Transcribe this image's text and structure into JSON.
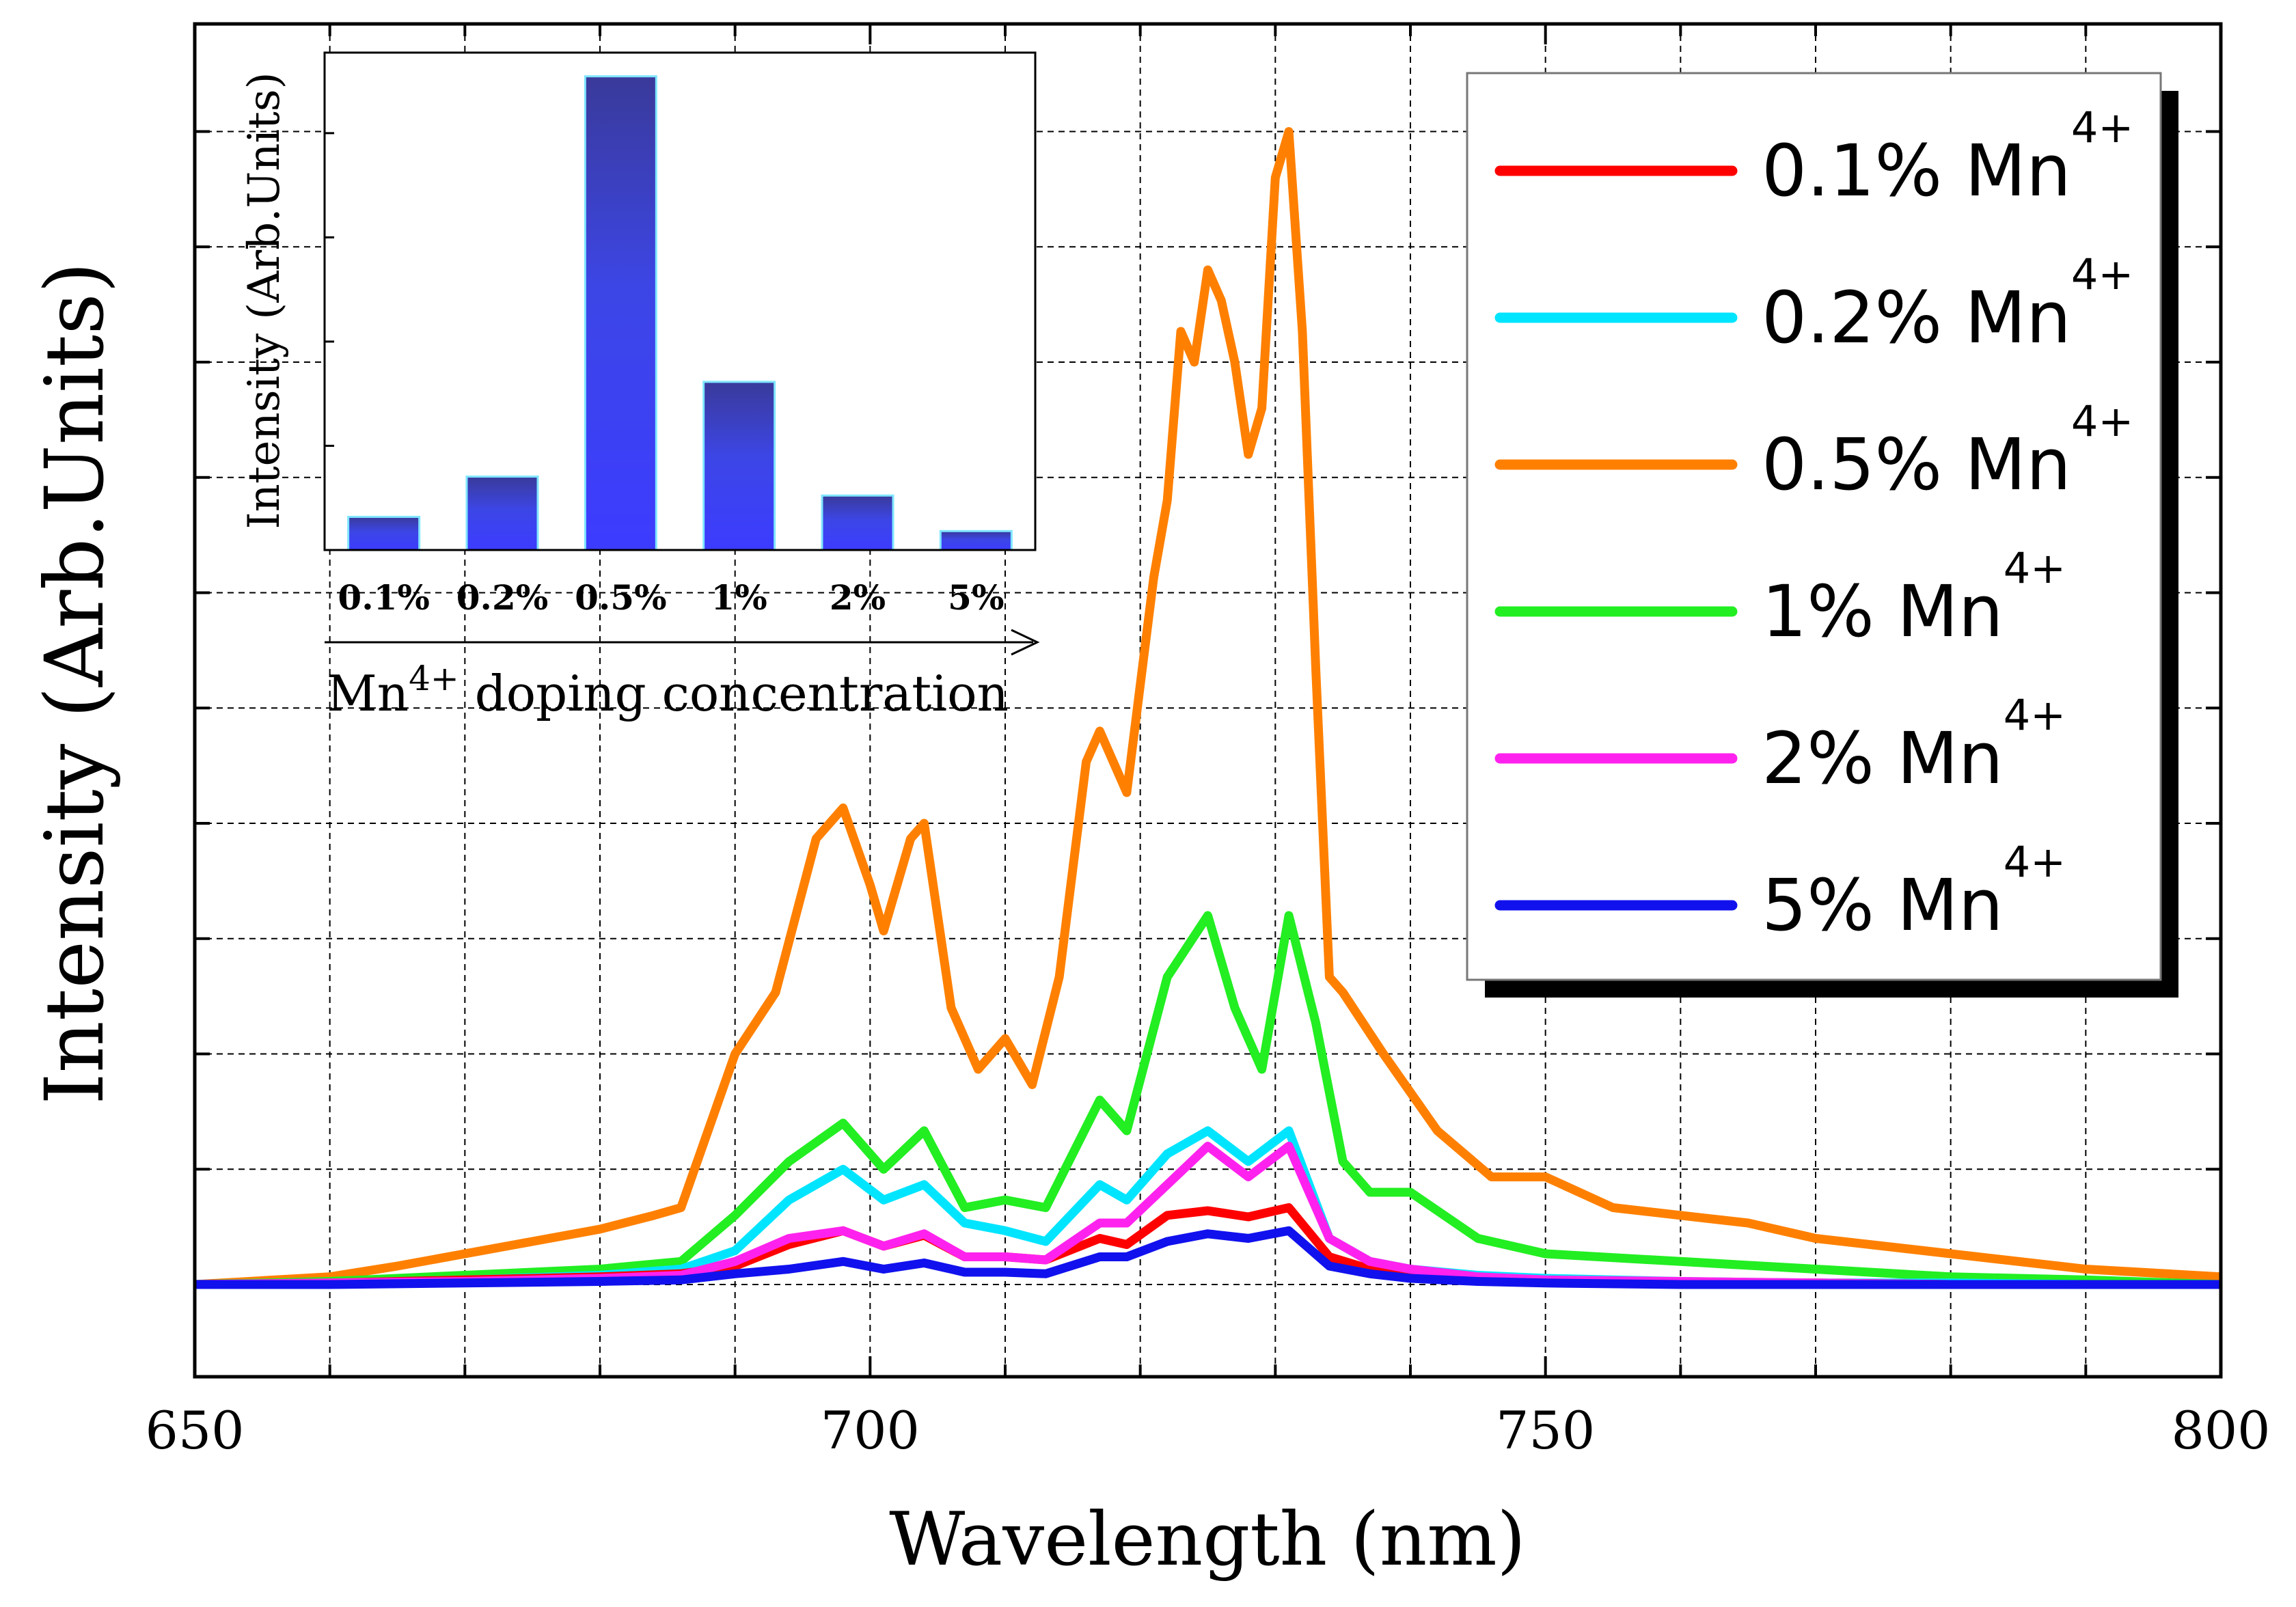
{
  "chart_data": [
    {
      "type": "line",
      "title": "",
      "xlabel": "Wavelength (nm)",
      "ylabel": "Intensity (Arb.Units)",
      "xlim": [
        650,
        800
      ],
      "ylim": [
        -0.06,
        0.82
      ],
      "xticks": [
        650,
        700,
        750,
        800
      ],
      "grid": true,
      "legend_position": "top-right",
      "series": [
        {
          "name": "0.1% Mn",
          "superscript": "4+",
          "color": "#ff0000",
          "x": [
            650,
            660,
            670,
            680,
            686,
            690,
            694,
            698,
            701,
            704,
            707,
            710,
            713,
            717,
            719,
            722,
            725,
            728,
            731,
            734,
            737,
            740,
            745,
            750,
            760,
            770,
            780,
            790,
            800
          ],
          "y": [
            0,
            0.001,
            0.003,
            0.005,
            0.007,
            0.012,
            0.026,
            0.035,
            0.025,
            0.032,
            0.018,
            0.018,
            0.016,
            0.03,
            0.026,
            0.045,
            0.048,
            0.044,
            0.05,
            0.018,
            0.01,
            0.006,
            0.003,
            0.002,
            0.001,
            0.001,
            0,
            0,
            0
          ]
        },
        {
          "name": "0.2% Mn",
          "superscript": "4+",
          "color": "#00e5ff",
          "x": [
            650,
            660,
            670,
            680,
            686,
            690,
            694,
            698,
            701,
            704,
            707,
            710,
            713,
            717,
            719,
            722,
            725,
            728,
            731,
            734,
            737,
            740,
            745,
            750,
            760,
            770,
            780,
            790,
            800
          ],
          "y": [
            0,
            0.001,
            0.003,
            0.006,
            0.01,
            0.022,
            0.055,
            0.075,
            0.055,
            0.065,
            0.04,
            0.035,
            0.028,
            0.065,
            0.055,
            0.085,
            0.1,
            0.08,
            0.1,
            0.03,
            0.015,
            0.01,
            0.006,
            0.004,
            0.002,
            0.001,
            0.001,
            0,
            0
          ]
        },
        {
          "name": "0.5% Mn",
          "superscript": "4+",
          "color": "#ff8000",
          "x": [
            650,
            660,
            665,
            670,
            675,
            680,
            684,
            686,
            690,
            693,
            696,
            698,
            700,
            701,
            703,
            704,
            706,
            708,
            710,
            712,
            714,
            716,
            717,
            719,
            721,
            722,
            723,
            724,
            725,
            726,
            727,
            728,
            729,
            730,
            731,
            732,
            733,
            734,
            735,
            738,
            742,
            746,
            750,
            755,
            760,
            765,
            770,
            780,
            790,
            800
          ],
          "y": [
            0,
            0.005,
            0.012,
            0.02,
            0.028,
            0.036,
            0.045,
            0.05,
            0.15,
            0.19,
            0.29,
            0.31,
            0.26,
            0.23,
            0.29,
            0.3,
            0.18,
            0.14,
            0.16,
            0.13,
            0.2,
            0.34,
            0.36,
            0.32,
            0.46,
            0.51,
            0.62,
            0.6,
            0.66,
            0.64,
            0.6,
            0.54,
            0.57,
            0.72,
            0.75,
            0.62,
            0.4,
            0.2,
            0.19,
            0.15,
            0.1,
            0.07,
            0.07,
            0.05,
            0.045,
            0.04,
            0.03,
            0.02,
            0.01,
            0.005
          ]
        },
        {
          "name": "1% Mn",
          "superscript": "4+",
          "color": "#22ee22",
          "x": [
            650,
            660,
            670,
            680,
            686,
            690,
            694,
            698,
            701,
            704,
            707,
            710,
            713,
            717,
            719,
            722,
            725,
            727,
            729,
            731,
            733,
            735,
            737,
            740,
            745,
            750,
            760,
            770,
            780,
            790,
            800
          ],
          "y": [
            0,
            0.002,
            0.006,
            0.01,
            0.015,
            0.045,
            0.08,
            0.105,
            0.075,
            0.1,
            0.05,
            0.055,
            0.05,
            0.12,
            0.1,
            0.2,
            0.24,
            0.18,
            0.14,
            0.24,
            0.17,
            0.08,
            0.06,
            0.06,
            0.03,
            0.02,
            0.015,
            0.01,
            0.005,
            0.003,
            0
          ]
        },
        {
          "name": "2% Mn",
          "superscript": "4+",
          "color": "#ff22ee",
          "x": [
            650,
            660,
            670,
            680,
            686,
            690,
            694,
            698,
            701,
            704,
            707,
            710,
            713,
            717,
            719,
            722,
            725,
            728,
            731,
            734,
            737,
            740,
            745,
            750,
            760,
            770,
            780,
            790,
            800
          ],
          "y": [
            0,
            0.001,
            0.002,
            0.004,
            0.006,
            0.015,
            0.03,
            0.035,
            0.025,
            0.033,
            0.018,
            0.018,
            0.016,
            0.04,
            0.04,
            0.065,
            0.09,
            0.07,
            0.09,
            0.03,
            0.015,
            0.01,
            0.005,
            0.003,
            0.002,
            0.001,
            0,
            0,
            0
          ]
        },
        {
          "name": "5% Mn",
          "superscript": "4+",
          "color": "#1111ee",
          "x": [
            650,
            660,
            670,
            680,
            686,
            690,
            694,
            698,
            701,
            704,
            707,
            710,
            713,
            717,
            719,
            722,
            725,
            728,
            731,
            734,
            737,
            740,
            745,
            750,
            760,
            770,
            780,
            790,
            800
          ],
          "y": [
            0,
            0,
            0.001,
            0.002,
            0.003,
            0.007,
            0.01,
            0.015,
            0.01,
            0.014,
            0.008,
            0.008,
            0.007,
            0.018,
            0.018,
            0.028,
            0.033,
            0.03,
            0.035,
            0.012,
            0.007,
            0.004,
            0.002,
            0.001,
            0,
            0,
            0,
            0,
            0
          ]
        }
      ]
    },
    {
      "type": "bar",
      "title": "",
      "xlabel": "Mn",
      "xlabel_superscript": "4+",
      "xlabel_suffix": " doping concentration",
      "ylabel": "Intensity (Arb.Units)",
      "categories": [
        "0.1%",
        "0.2%",
        "0.5%",
        "1%",
        "2%",
        "5%"
      ],
      "values": [
        7,
        15.5,
        100,
        35.5,
        11.5,
        4
      ],
      "ylim": [
        0,
        105
      ],
      "color": "#3c3cf0"
    }
  ]
}
